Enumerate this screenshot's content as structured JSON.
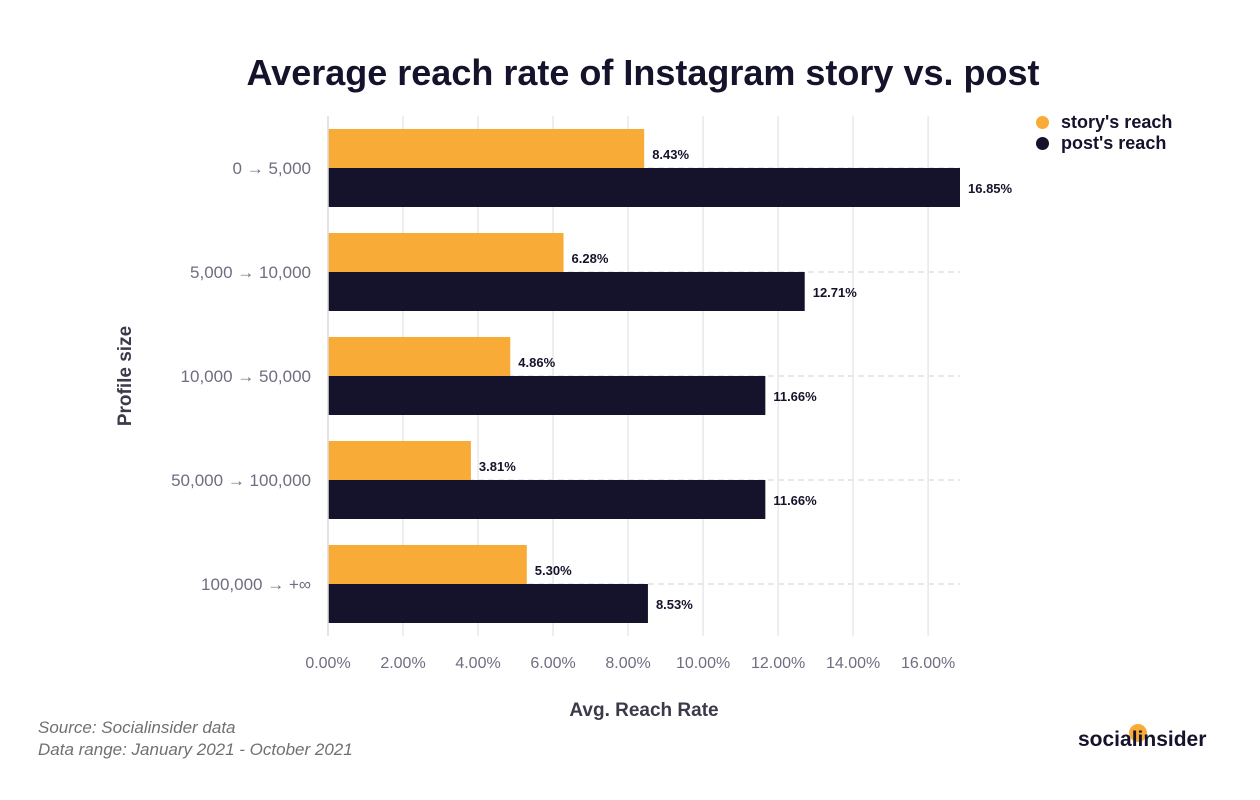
{
  "chart_data": {
    "type": "bar",
    "orientation": "horizontal",
    "title": "Average reach rate of Instagram story vs. post",
    "xlabel": "Avg. Reach Rate",
    "ylabel": "Profile size",
    "categories": [
      "0 → 5,000",
      "5,000 → 10,000",
      "10,000 → 50,000",
      "50,000 → 100,000",
      "100,000 → +∞"
    ],
    "series": [
      {
        "name": "story's reach",
        "color": "#f9ab37",
        "values": [
          8.43,
          6.28,
          4.86,
          3.81,
          5.3
        ],
        "labels": [
          "8.43%",
          "6.28%",
          "4.86%",
          "3.81%",
          "5.30%"
        ]
      },
      {
        "name": "post's reach",
        "color": "#15132b",
        "values": [
          16.85,
          12.71,
          11.66,
          11.66,
          8.53
        ],
        "labels": [
          "16.85%",
          "12.71%",
          "11.66%",
          "11.66%",
          "8.53%"
        ]
      }
    ],
    "xlim": [
      0,
      16.85
    ],
    "xticks": [
      "0.00%",
      "2.00%",
      "4.00%",
      "6.00%",
      "8.00%",
      "10.00%",
      "12.00%",
      "14.00%",
      "16.00%"
    ],
    "xtick_values": [
      0,
      2,
      4,
      6,
      8,
      10,
      12,
      14,
      16
    ],
    "grid": true,
    "legend_position": "top-right"
  },
  "footer": {
    "source": "Source: Socialinsider data",
    "range": "Data range: January 2021 - October 2021",
    "brand": "socialinsider"
  }
}
